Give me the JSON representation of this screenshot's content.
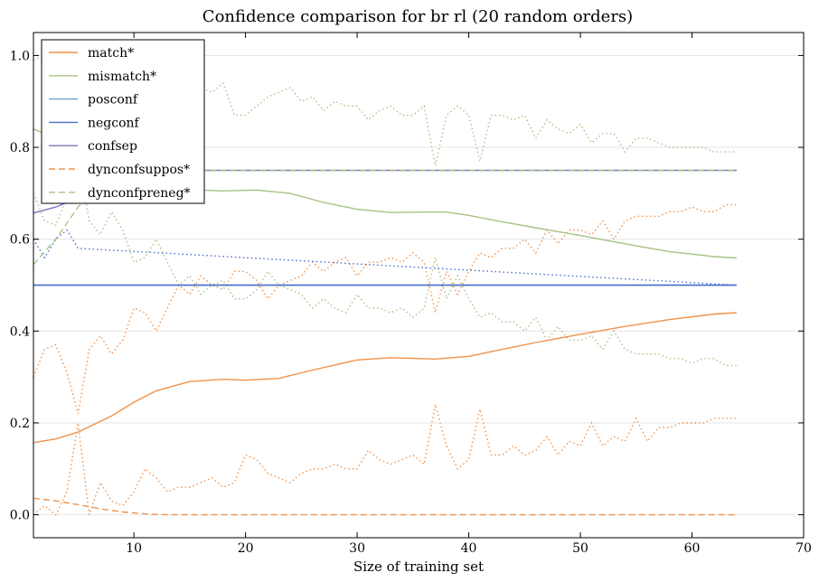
{
  "chart_data": {
    "type": "line",
    "title": "Confidence comparison for br rl (20 random orders)",
    "xlabel": "Size of training set",
    "ylabel": "",
    "xlim": [
      1,
      70
    ],
    "ylim": [
      -0.05,
      1.05
    ],
    "xticks": [
      10,
      20,
      30,
      40,
      50,
      60,
      70
    ],
    "yticks": [
      0.0,
      0.2,
      0.4,
      0.6,
      0.8,
      1.0
    ],
    "xtick_labels": [
      "10",
      "20",
      "30",
      "40",
      "50",
      "60",
      "70"
    ],
    "ytick_labels": [
      "0.0",
      "0.2",
      "0.4",
      "0.6",
      "0.8",
      "1.0"
    ],
    "grid": "horizontal",
    "legend_position": "top-left",
    "series": [
      {
        "name": "match*",
        "color": "#f0924a",
        "style": "solid",
        "x": [
          1,
          3,
          5,
          8,
          10,
          12,
          15,
          18,
          20,
          23,
          26,
          30,
          33,
          37,
          40,
          43,
          46,
          50,
          54,
          58,
          62,
          64
        ],
        "y": [
          0.157,
          0.165,
          0.18,
          0.215,
          0.245,
          0.27,
          0.29,
          0.295,
          0.293,
          0.297,
          0.315,
          0.337,
          0.342,
          0.339,
          0.345,
          0.36,
          0.375,
          0.393,
          0.41,
          0.425,
          0.437,
          0.44
        ]
      },
      {
        "name": "mismatch*",
        "color": "#a8c284",
        "style": "solid",
        "x": [
          1,
          2,
          4,
          6,
          8,
          10,
          12,
          15,
          18,
          21,
          24,
          27,
          30,
          33,
          36,
          38,
          40,
          43,
          46,
          50,
          54,
          58,
          62,
          64
        ],
        "y": [
          0.84,
          0.83,
          0.81,
          0.785,
          0.75,
          0.73,
          0.72,
          0.708,
          0.705,
          0.707,
          0.7,
          0.68,
          0.665,
          0.658,
          0.659,
          0.659,
          0.652,
          0.638,
          0.625,
          0.608,
          0.59,
          0.573,
          0.562,
          0.559
        ]
      },
      {
        "name": "posconf",
        "color": "#6fa0cc",
        "style": "solid",
        "x": [
          1,
          64
        ],
        "y": [
          0.5,
          0.5
        ]
      },
      {
        "name": "negconf",
        "color": "#4b6ed0",
        "style": "solid",
        "x": [
          1,
          64
        ],
        "y": [
          0.5,
          0.5
        ]
      },
      {
        "name": "confsep",
        "color": "#7a76c2",
        "style": "solid",
        "x": [
          1,
          3,
          5,
          7,
          9,
          64
        ],
        "y": [
          0.657,
          0.67,
          0.69,
          0.72,
          0.75,
          0.75
        ]
      },
      {
        "name": "dynconfsuppos*",
        "color": "#f0924a",
        "style": "dashed",
        "x": [
          1,
          3,
          5,
          7,
          9,
          11,
          13,
          15,
          64
        ],
        "y": [
          0.036,
          0.03,
          0.022,
          0.013,
          0.006,
          0.002,
          0.0,
          0.0,
          0.0
        ]
      },
      {
        "name": "dynconfpreneg*",
        "color": "#a8c284",
        "style": "dashed",
        "x": [
          1,
          3,
          5,
          7,
          9,
          64
        ],
        "y": [
          0.545,
          0.6,
          0.67,
          0.72,
          0.75,
          0.75
        ]
      }
    ],
    "band_series": [
      {
        "color": "#f0924a",
        "style": "dotted",
        "x": [
          1,
          2,
          3,
          4,
          5,
          6,
          7,
          8,
          9,
          10,
          11,
          12,
          13,
          14,
          15,
          16,
          17,
          18,
          19,
          20,
          21,
          22,
          23,
          24,
          25,
          26,
          27,
          28,
          29,
          30,
          31,
          32,
          33,
          34,
          35,
          36,
          37,
          38,
          39,
          40,
          41,
          42,
          43,
          44,
          45,
          46,
          47,
          48,
          49,
          50,
          51,
          52,
          53,
          54,
          55,
          56,
          57,
          58,
          59,
          60,
          61,
          62,
          63,
          64
        ],
        "y": [
          0.3,
          0.36,
          0.37,
          0.31,
          0.22,
          0.36,
          0.39,
          0.35,
          0.38,
          0.45,
          0.44,
          0.4,
          0.45,
          0.5,
          0.48,
          0.52,
          0.5,
          0.49,
          0.53,
          0.53,
          0.51,
          0.47,
          0.5,
          0.51,
          0.52,
          0.55,
          0.53,
          0.55,
          0.56,
          0.52,
          0.55,
          0.55,
          0.56,
          0.55,
          0.57,
          0.55,
          0.44,
          0.53,
          0.48,
          0.53,
          0.57,
          0.56,
          0.58,
          0.58,
          0.6,
          0.57,
          0.62,
          0.59,
          0.62,
          0.62,
          0.61,
          0.64,
          0.6,
          0.64,
          0.65,
          0.65,
          0.65,
          0.66,
          0.66,
          0.67,
          0.66,
          0.66,
          0.675,
          0.675
        ]
      },
      {
        "color": "#f0924a",
        "style": "dotted",
        "x": [
          1,
          2,
          3,
          4,
          5,
          6,
          7,
          8,
          9,
          10,
          11,
          12,
          13,
          14,
          15,
          16,
          17,
          18,
          19,
          20,
          21,
          22,
          23,
          24,
          25,
          26,
          27,
          28,
          29,
          30,
          31,
          32,
          33,
          34,
          35,
          36,
          37,
          38,
          39,
          40,
          41,
          42,
          43,
          44,
          45,
          46,
          47,
          48,
          49,
          50,
          51,
          52,
          53,
          54,
          55,
          56,
          57,
          58,
          59,
          60,
          61,
          62,
          63,
          64
        ],
        "y": [
          0.0,
          0.02,
          0.0,
          0.05,
          0.2,
          0.0,
          0.07,
          0.03,
          0.02,
          0.05,
          0.1,
          0.08,
          0.05,
          0.06,
          0.06,
          0.07,
          0.08,
          0.06,
          0.07,
          0.13,
          0.12,
          0.09,
          0.08,
          0.07,
          0.09,
          0.1,
          0.1,
          0.11,
          0.1,
          0.1,
          0.14,
          0.12,
          0.11,
          0.12,
          0.13,
          0.11,
          0.24,
          0.15,
          0.1,
          0.12,
          0.23,
          0.13,
          0.13,
          0.15,
          0.13,
          0.14,
          0.17,
          0.13,
          0.16,
          0.15,
          0.2,
          0.15,
          0.17,
          0.16,
          0.21,
          0.16,
          0.19,
          0.19,
          0.2,
          0.2,
          0.2,
          0.21,
          0.21,
          0.21
        ]
      },
      {
        "color": "#a8c284",
        "style": "dotted",
        "x": [
          1,
          2,
          3,
          4,
          5,
          6,
          7,
          8,
          9,
          10,
          11,
          12,
          13,
          14,
          15,
          16,
          17,
          18,
          19,
          20,
          21,
          22,
          23,
          24,
          25,
          26,
          27,
          28,
          29,
          30,
          31,
          32,
          33,
          34,
          35,
          36,
          37,
          38,
          39,
          40,
          41,
          42,
          43,
          44,
          45,
          46,
          47,
          48,
          49,
          50,
          51,
          52,
          53,
          54,
          55,
          56,
          57,
          58,
          59,
          60,
          61,
          62,
          63,
          64
        ],
        "y": [
          0.99,
          1.0,
          0.98,
          0.95,
          0.78,
          0.95,
          0.93,
          0.96,
          0.97,
          0.94,
          0.9,
          0.92,
          0.95,
          0.93,
          0.94,
          0.93,
          0.92,
          0.94,
          0.87,
          0.87,
          0.89,
          0.91,
          0.92,
          0.93,
          0.9,
          0.91,
          0.88,
          0.9,
          0.89,
          0.89,
          0.86,
          0.88,
          0.89,
          0.87,
          0.87,
          0.89,
          0.76,
          0.87,
          0.89,
          0.87,
          0.77,
          0.87,
          0.87,
          0.86,
          0.87,
          0.82,
          0.86,
          0.84,
          0.83,
          0.85,
          0.81,
          0.83,
          0.83,
          0.79,
          0.82,
          0.82,
          0.81,
          0.8,
          0.8,
          0.8,
          0.8,
          0.79,
          0.79,
          0.79
        ]
      },
      {
        "color": "#a8c284",
        "style": "dotted",
        "x": [
          1,
          2,
          3,
          4,
          5,
          6,
          7,
          8,
          9,
          10,
          11,
          12,
          13,
          14,
          15,
          16,
          17,
          18,
          19,
          20,
          21,
          22,
          23,
          24,
          25,
          26,
          27,
          28,
          29,
          30,
          31,
          32,
          33,
          34,
          35,
          36,
          37,
          38,
          39,
          40,
          41,
          42,
          43,
          44,
          45,
          46,
          47,
          48,
          49,
          50,
          51,
          52,
          53,
          54,
          55,
          56,
          57,
          58,
          59,
          60,
          61,
          62,
          63,
          64
        ],
        "y": [
          0.7,
          0.64,
          0.63,
          0.69,
          0.78,
          0.64,
          0.61,
          0.66,
          0.62,
          0.55,
          0.56,
          0.6,
          0.55,
          0.5,
          0.52,
          0.48,
          0.5,
          0.51,
          0.47,
          0.47,
          0.49,
          0.53,
          0.5,
          0.49,
          0.48,
          0.45,
          0.47,
          0.45,
          0.44,
          0.48,
          0.45,
          0.45,
          0.44,
          0.45,
          0.43,
          0.45,
          0.56,
          0.47,
          0.52,
          0.47,
          0.43,
          0.44,
          0.42,
          0.42,
          0.4,
          0.43,
          0.38,
          0.41,
          0.38,
          0.38,
          0.39,
          0.36,
          0.4,
          0.36,
          0.35,
          0.35,
          0.35,
          0.34,
          0.34,
          0.33,
          0.34,
          0.34,
          0.325,
          0.325
        ]
      },
      {
        "color": "#4b6ed0",
        "style": "dotted",
        "x": [
          1,
          2,
          3,
          4,
          5,
          64
        ],
        "y": [
          0.6,
          0.56,
          0.6,
          0.62,
          0.58,
          0.5
        ]
      }
    ]
  }
}
